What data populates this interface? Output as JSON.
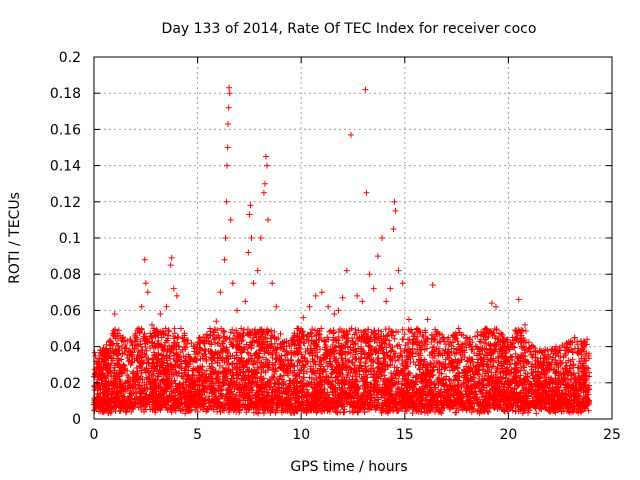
{
  "chart_data": {
    "type": "scatter",
    "title": "Day 133 of 2014, Rate Of TEC Index for receiver coco",
    "xlabel": "GPS time / hours",
    "ylabel": "ROTI / TECUs",
    "xlim": [
      0,
      25
    ],
    "ylim": [
      0,
      0.2
    ],
    "xticks": [
      0,
      5,
      10,
      15,
      20,
      25
    ],
    "xtick_labels": [
      "0",
      "5",
      "10",
      "15",
      "20",
      "25"
    ],
    "yticks": [
      0,
      0.02,
      0.04,
      0.06,
      0.08,
      0.1,
      0.12,
      0.14,
      0.16,
      0.18,
      0.2
    ],
    "ytick_labels": [
      "0",
      "0.02",
      "0.04",
      "0.06",
      "0.08",
      "0.1",
      "0.12",
      "0.14",
      "0.16",
      "0.18",
      "0.2"
    ],
    "grid": true,
    "marker": "+",
    "color": "#ff0000",
    "data_range_x": [
      0,
      23.9
    ],
    "series": [
      {
        "name": "ROTI",
        "points": [
          [
            0.1,
            0.032
          ],
          [
            0.3,
            0.038
          ],
          [
            0.6,
            0.041
          ],
          [
            0.9,
            0.047
          ],
          [
            1.0,
            0.058
          ],
          [
            1.2,
            0.049
          ],
          [
            1.6,
            0.043
          ],
          [
            2.0,
            0.047
          ],
          [
            2.3,
            0.062
          ],
          [
            2.45,
            0.088
          ],
          [
            2.5,
            0.075
          ],
          [
            2.6,
            0.07
          ],
          [
            2.8,
            0.052
          ],
          [
            3.2,
            0.058
          ],
          [
            3.5,
            0.062
          ],
          [
            3.7,
            0.085
          ],
          [
            3.75,
            0.089
          ],
          [
            3.85,
            0.072
          ],
          [
            4.0,
            0.068
          ],
          [
            4.2,
            0.05
          ],
          [
            4.7,
            0.042
          ],
          [
            5.1,
            0.045
          ],
          [
            5.6,
            0.05
          ],
          [
            5.9,
            0.054
          ],
          [
            6.1,
            0.07
          ],
          [
            6.3,
            0.088
          ],
          [
            6.35,
            0.1
          ],
          [
            6.4,
            0.12
          ],
          [
            6.42,
            0.14
          ],
          [
            6.45,
            0.15
          ],
          [
            6.47,
            0.163
          ],
          [
            6.5,
            0.172
          ],
          [
            6.52,
            0.183
          ],
          [
            6.55,
            0.18
          ],
          [
            6.6,
            0.11
          ],
          [
            6.7,
            0.075
          ],
          [
            6.9,
            0.06
          ],
          [
            7.1,
            0.05
          ],
          [
            7.3,
            0.065
          ],
          [
            7.45,
            0.092
          ],
          [
            7.5,
            0.113
          ],
          [
            7.55,
            0.118
          ],
          [
            7.6,
            0.1
          ],
          [
            7.7,
            0.075
          ],
          [
            7.9,
            0.082
          ],
          [
            8.05,
            0.1
          ],
          [
            8.2,
            0.125
          ],
          [
            8.25,
            0.13
          ],
          [
            8.3,
            0.145
          ],
          [
            8.35,
            0.14
          ],
          [
            8.4,
            0.11
          ],
          [
            8.6,
            0.075
          ],
          [
            8.8,
            0.062
          ],
          [
            9.0,
            0.047
          ],
          [
            9.4,
            0.042
          ],
          [
            9.8,
            0.05
          ],
          [
            10.1,
            0.056
          ],
          [
            10.4,
            0.062
          ],
          [
            10.7,
            0.068
          ],
          [
            11.0,
            0.07
          ],
          [
            11.3,
            0.062
          ],
          [
            11.6,
            0.058
          ],
          [
            11.8,
            0.06
          ],
          [
            12.0,
            0.067
          ],
          [
            12.2,
            0.082
          ],
          [
            12.4,
            0.157
          ],
          [
            12.7,
            0.068
          ],
          [
            12.95,
            0.065
          ],
          [
            13.1,
            0.182
          ],
          [
            13.15,
            0.125
          ],
          [
            13.3,
            0.08
          ],
          [
            13.5,
            0.072
          ],
          [
            13.7,
            0.09
          ],
          [
            13.9,
            0.1
          ],
          [
            14.1,
            0.065
          ],
          [
            14.3,
            0.072
          ],
          [
            14.45,
            0.105
          ],
          [
            14.5,
            0.12
          ],
          [
            14.55,
            0.115
          ],
          [
            14.7,
            0.082
          ],
          [
            14.9,
            0.075
          ],
          [
            15.2,
            0.055
          ],
          [
            15.6,
            0.05
          ],
          [
            16.1,
            0.055
          ],
          [
            16.35,
            0.074
          ],
          [
            16.6,
            0.048
          ],
          [
            17.1,
            0.045
          ],
          [
            17.6,
            0.05
          ],
          [
            18.0,
            0.045
          ],
          [
            18.5,
            0.048
          ],
          [
            18.9,
            0.05
          ],
          [
            19.2,
            0.064
          ],
          [
            19.4,
            0.062
          ],
          [
            19.8,
            0.044
          ],
          [
            20.2,
            0.045
          ],
          [
            20.5,
            0.066
          ],
          [
            20.8,
            0.052
          ],
          [
            21.2,
            0.04
          ],
          [
            21.8,
            0.038
          ],
          [
            22.3,
            0.04
          ],
          [
            22.8,
            0.042
          ],
          [
            23.2,
            0.045
          ],
          [
            23.5,
            0.043
          ],
          [
            23.8,
            0.044
          ]
        ]
      }
    ]
  }
}
